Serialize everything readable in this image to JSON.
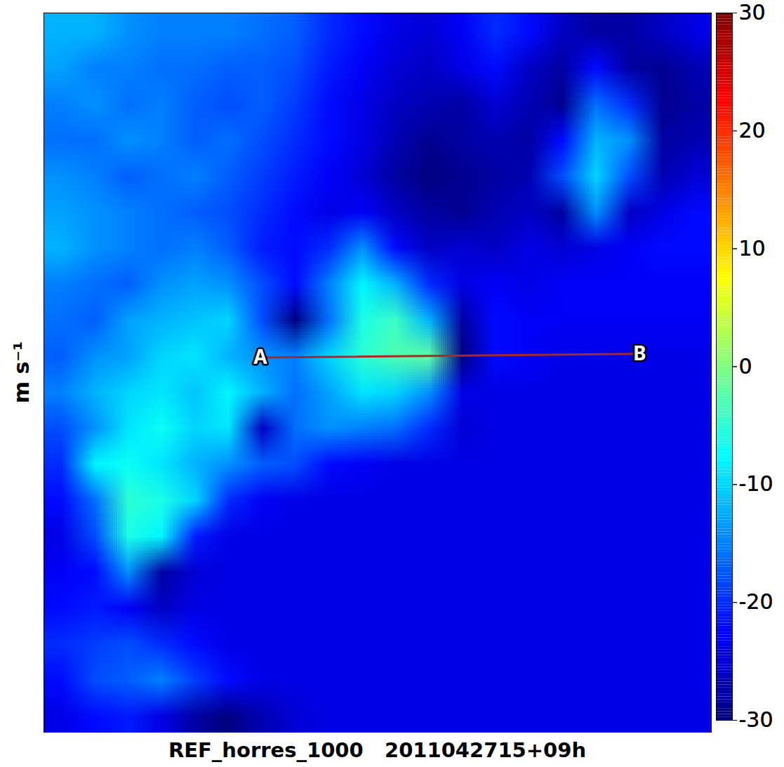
{
  "chart_data": {
    "type": "heatmap",
    "title": "REF_horres_1000   2011042715+09h",
    "xlim": [
      0,
      20
    ],
    "ylim": [
      0,
      20
    ],
    "tick_labels": false,
    "cells": [
      [
        -12,
        -12,
        -14,
        -15,
        -15,
        -15,
        -16,
        -17,
        -20,
        -22,
        -24,
        -25,
        -23,
        -20,
        -22,
        -26,
        -28,
        -28,
        -26,
        -24
      ],
      [
        -13,
        -15,
        -15,
        -16,
        -16,
        -17,
        -17,
        -18,
        -21,
        -23,
        -25,
        -26,
        -24,
        -22,
        -26,
        -28,
        -22,
        -28,
        -29,
        -27
      ],
      [
        -15,
        -14,
        -16,
        -15,
        -17,
        -18,
        -17,
        -19,
        -22,
        -24,
        -26,
        -27,
        -28,
        -25,
        -27,
        -29,
        -16,
        -20,
        -29,
        -28
      ],
      [
        -16,
        -16,
        -14,
        -15,
        -17,
        -16,
        -18,
        -20,
        -22,
        -24,
        -27,
        -29,
        -28,
        -27,
        -28,
        -22,
        -12,
        -14,
        -28,
        -27
      ],
      [
        -14,
        -15,
        -17,
        -16,
        -15,
        -17,
        -19,
        -21,
        -23,
        -25,
        -28,
        -30,
        -29,
        -28,
        -27,
        -18,
        -10,
        -18,
        -27,
        -25
      ],
      [
        -13,
        -14,
        -15,
        -16,
        -17,
        -18,
        -20,
        -22,
        -24,
        -23,
        -26,
        -28,
        -29,
        -27,
        -26,
        -28,
        -14,
        -26,
        -24,
        -22
      ],
      [
        -12,
        -14,
        -15,
        -16,
        -15,
        -17,
        -21,
        -22,
        -20,
        -14,
        -22,
        -26,
        -25,
        -26,
        -24,
        -25,
        -24,
        -23,
        -22,
        -22
      ],
      [
        -15,
        -16,
        -17,
        -14,
        -13,
        -14,
        -18,
        -22,
        -15,
        -8,
        -12,
        -20,
        -24,
        -23,
        -24,
        -23,
        -23,
        -23,
        -23,
        -23
      ],
      [
        -16,
        -17,
        -13,
        -12,
        -11,
        -10,
        -18,
        -30,
        -16,
        -6,
        -4,
        -12,
        -28,
        -22,
        -23,
        -23,
        -23,
        -23,
        -23,
        -23
      ],
      [
        -17,
        -14,
        -13,
        -10,
        -9,
        -12,
        -14,
        -15,
        -10,
        -5,
        -3,
        -2,
        -30,
        -22,
        -23,
        -24,
        -24,
        -24,
        -24,
        -24
      ],
      [
        -15,
        -12,
        -10,
        -9,
        -11,
        -8,
        -12,
        -16,
        -13,
        -9,
        -10,
        -14,
        -24,
        -24,
        -24,
        -24,
        -24,
        -24,
        -24,
        -24
      ],
      [
        -18,
        -14,
        -9,
        -7,
        -10,
        -9,
        -26,
        -16,
        -14,
        -15,
        -16,
        -20,
        -25,
        -24,
        -24,
        -24,
        -24,
        -24,
        -24,
        -24
      ],
      [
        -20,
        -8,
        -7,
        -9,
        -12,
        -14,
        -17,
        -18,
        -22,
        -23,
        -24,
        -24,
        -24,
        -24,
        -24,
        -24,
        -24,
        -24,
        -24,
        -24
      ],
      [
        -22,
        -16,
        -5,
        -6,
        -10,
        -20,
        -23,
        -24,
        -24,
        -24,
        -24,
        -24,
        -24,
        -24,
        -24,
        -24,
        -24,
        -24,
        -24,
        -24
      ],
      [
        -24,
        -18,
        -6,
        -8,
        -21,
        -24,
        -24,
        -24,
        -24,
        -24,
        -24,
        -24,
        -24,
        -24,
        -24,
        -24,
        -24,
        -24,
        -24,
        -24
      ],
      [
        -23,
        -22,
        -14,
        -28,
        -25,
        -24,
        -24,
        -24,
        -24,
        -24,
        -24,
        -24,
        -24,
        -24,
        -24,
        -24,
        -24,
        -24,
        -24,
        -24
      ],
      [
        -22,
        -21,
        -23,
        -26,
        -24,
        -24,
        -24,
        -24,
        -24,
        -24,
        -24,
        -24,
        -24,
        -24,
        -24,
        -24,
        -24,
        -24,
        -24,
        -24
      ],
      [
        -20,
        -19,
        -18,
        -20,
        -22,
        -24,
        -24,
        -24,
        -24,
        -24,
        -24,
        -24,
        -24,
        -24,
        -24,
        -24,
        -24,
        -24,
        -24,
        -24
      ],
      [
        -22,
        -18,
        -17,
        -15,
        -19,
        -22,
        -24,
        -24,
        -24,
        -24,
        -24,
        -24,
        -24,
        -24,
        -24,
        -24,
        -24,
        -24,
        -24,
        -24
      ],
      [
        -24,
        -22,
        -21,
        -24,
        -28,
        -30,
        -27,
        -25,
        -24,
        -24,
        -24,
        -24,
        -24,
        -24,
        -24,
        -24,
        -24,
        -24,
        -24,
        -24
      ]
    ],
    "colorbar": {
      "label": "m s⁻¹",
      "range": [
        -30,
        30
      ],
      "ticks": [
        -30,
        -20,
        -10,
        0,
        10,
        20,
        30
      ]
    },
    "section_line": {
      "start": {
        "label": "A",
        "x": 6.48,
        "y": 9.57
      },
      "end": {
        "label": "B",
        "x": 17.83,
        "y": 9.47
      }
    }
  }
}
